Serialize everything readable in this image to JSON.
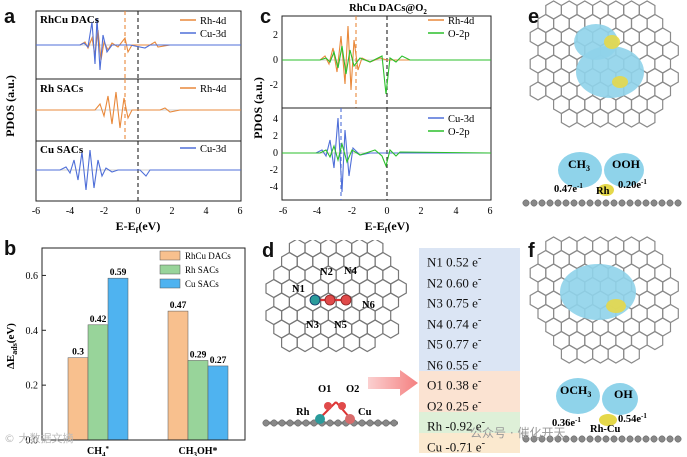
{
  "panel_labels": {
    "a": "a",
    "b": "b",
    "c": "c",
    "d": "d",
    "e": "e",
    "f": "f"
  },
  "panel_a": {
    "ylabel": "PDOS (a.u.)",
    "xlabel": "E-E",
    "xlabel_sub": "f",
    "xlabel_unit": "(eV)",
    "xticks": [
      "-6",
      "-4",
      "-2",
      "0",
      "2",
      "4",
      "6"
    ],
    "subpanels": [
      {
        "title": "RhCu DACs",
        "legend": [
          "Rh-4d",
          "Cu-3d"
        ]
      },
      {
        "title": "Rh SACs",
        "legend": [
          "Rh-4d"
        ]
      },
      {
        "title": "Cu SACs",
        "legend": [
          "Cu-3d"
        ]
      }
    ]
  },
  "panel_c": {
    "title": "RhCu DACs@O",
    "title_sub": "2",
    "ylabel": "PDOS (a.u.)",
    "xlabel": "E-E",
    "xlabel_sub": "f",
    "xlabel_unit": "(eV)",
    "xticks": [
      "-6",
      "-4",
      "-2",
      "0",
      "2",
      "4",
      "6"
    ],
    "top_yticks": [
      "2",
      "0",
      "-2"
    ],
    "bottom_yticks": [
      "4",
      "2",
      "0",
      "-2",
      "-4"
    ],
    "top_legend": [
      "Rh-4d",
      "O-2p"
    ],
    "bottom_legend": [
      "Cu-3d",
      "O-2p"
    ]
  },
  "chart_data": {
    "type": "bar",
    "ylabel": "ΔE_ads (eV)",
    "ylim": [
      0,
      0.7
    ],
    "yticks": [
      "0.0",
      "0.2",
      "0.4",
      "0.6"
    ],
    "categories": [
      "CH4*",
      "CH3OH*"
    ],
    "category_labels": [
      {
        "main": "CH",
        "sub": "4",
        "sup": "*"
      },
      {
        "main": "CH",
        "sub": "3",
        "tail": "OH*"
      }
    ],
    "series": [
      {
        "name": "RhCu DACs",
        "color": "#f8c08e",
        "values": [
          0.3,
          0.47
        ]
      },
      {
        "name": "Rh SACs",
        "color": "#98d49a",
        "values": [
          0.42,
          0.29
        ]
      },
      {
        "name": "Cu SACs",
        "color": "#4fb3f0",
        "values": [
          0.59,
          0.27
        ]
      }
    ],
    "data_labels": [
      [
        "0.3",
        "0.47"
      ],
      [
        "0.42",
        "0.29"
      ],
      [
        "0.59",
        "0.27"
      ]
    ]
  },
  "panel_d": {
    "n_labels": [
      "N1",
      "N2",
      "N3",
      "N4",
      "N5",
      "N6"
    ],
    "side_labels": [
      "O1",
      "O2",
      "Rh",
      "Cu"
    ],
    "charges": [
      {
        "label": "N1 0.52 e",
        "sup": "-",
        "color": "#dbe5f4"
      },
      {
        "label": "N2 0.60 e",
        "sup": "-",
        "color": "#dbe5f4"
      },
      {
        "label": "N3 0.75 e",
        "sup": "-",
        "color": "#dbe5f4"
      },
      {
        "label": "N4 0.74 e",
        "sup": "-",
        "color": "#dbe5f4"
      },
      {
        "label": "N5 0.77 e",
        "sup": "-",
        "color": "#dbe5f4"
      },
      {
        "label": "N6 0.55 e",
        "sup": "-",
        "color": "#dbe5f4"
      },
      {
        "label": "O1 0.38 e",
        "sup": "-",
        "color": "#fbe3d2"
      },
      {
        "label": "O2 0.25 e",
        "sup": "-",
        "color": "#fbe3d2"
      },
      {
        "label": "Rh -0.92 e",
        "sup": "-",
        "color": "#def0d8"
      },
      {
        "label": "Cu -0.71 e",
        "sup": "-",
        "color": "#fbe9cf"
      }
    ]
  },
  "panel_e": {
    "left_group": "CH",
    "left_sub": "3",
    "right_group": "OOH",
    "left_charge": "0.47e",
    "right_charge": "0.20e",
    "charge_sup": "-1",
    "metal": "Rh"
  },
  "panel_f": {
    "left_group": "OCH",
    "left_sub": "3",
    "right_group": "OH",
    "left_charge": "0.36e",
    "right_charge": "0.54e",
    "charge_sup": "-1",
    "metal": "Rh-Cu"
  },
  "watermark": {
    "left": "© 大数据文摘",
    "right": "公众号 · 催化开天"
  },
  "colors": {
    "rh": "#e9893b",
    "cu": "#4f6fd8",
    "o": "#2bbf2b",
    "blue_fill": "#8fd3ea"
  }
}
